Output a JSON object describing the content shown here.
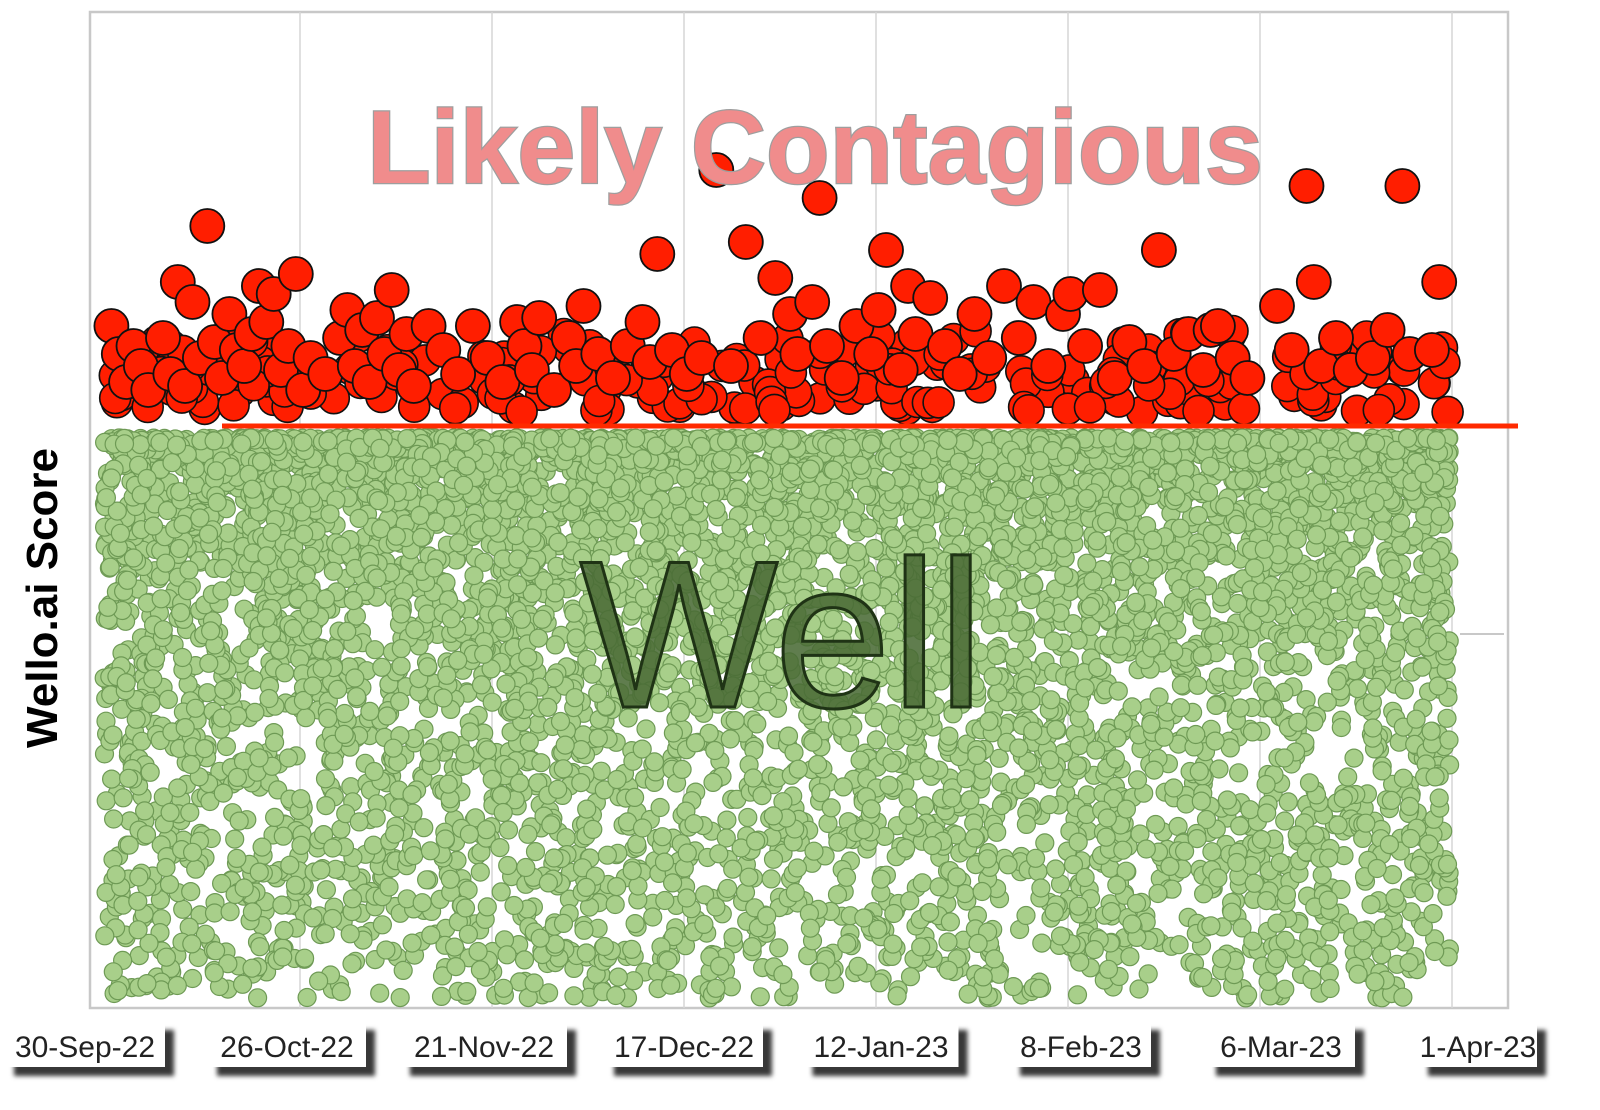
{
  "chart_data": {
    "type": "scatter",
    "ylabel": "Wello.ai Score",
    "x_tick_labels": [
      "30-Sep-22",
      "26-Oct-22",
      "21-Nov-22",
      "17-Dec-22",
      "12-Jan-23",
      "8-Feb-23",
      "6-Mar-23",
      "1-Apr-23"
    ],
    "xlim": [
      "2022-09-30",
      "2023-04-01"
    ],
    "y_ticks_shown": false,
    "grid": "vertical",
    "annotations": [
      "Likely Contagious",
      "Well"
    ],
    "threshold_line": {
      "color": "#ff2a00",
      "description": "separates Likely Contagious (above) from Well (below)"
    },
    "series": [
      {
        "color": "#ff1e00",
        "annotation": "Likely Contagious",
        "points": [
          {
            "x": "2022-10-01",
            "y": 50
          },
          {
            "x": "2022-10-02",
            "y": 36
          },
          {
            "x": "2022-10-03",
            "y": 22
          },
          {
            "x": "2022-10-04",
            "y": 40
          },
          {
            "x": "2022-10-05",
            "y": 30
          },
          {
            "x": "2022-10-06",
            "y": 18
          },
          {
            "x": "2022-10-08",
            "y": 44
          },
          {
            "x": "2022-10-09",
            "y": 26
          },
          {
            "x": "2022-10-10",
            "y": 72
          },
          {
            "x": "2022-10-11",
            "y": 20
          },
          {
            "x": "2022-10-12",
            "y": 62
          },
          {
            "x": "2022-10-13",
            "y": 34
          },
          {
            "x": "2022-10-14",
            "y": 100
          },
          {
            "x": "2022-10-15",
            "y": 42
          },
          {
            "x": "2022-10-16",
            "y": 24
          },
          {
            "x": "2022-10-17",
            "y": 56
          },
          {
            "x": "2022-10-18",
            "y": 38
          },
          {
            "x": "2022-10-19",
            "y": 30
          },
          {
            "x": "2022-10-20",
            "y": 46
          },
          {
            "x": "2022-10-21",
            "y": 70
          },
          {
            "x": "2022-10-22",
            "y": 52
          },
          {
            "x": "2022-10-23",
            "y": 66
          },
          {
            "x": "2022-10-24",
            "y": 28
          },
          {
            "x": "2022-10-25",
            "y": 40
          },
          {
            "x": "2022-10-26",
            "y": 76
          },
          {
            "x": "2022-10-27",
            "y": 18
          },
          {
            "x": "2022-10-28",
            "y": 34
          },
          {
            "x": "2022-10-30",
            "y": 26
          },
          {
            "x": "2022-11-01",
            "y": 44
          },
          {
            "x": "2022-11-02",
            "y": 58
          },
          {
            "x": "2022-11-03",
            "y": 30
          },
          {
            "x": "2022-11-04",
            "y": 48
          },
          {
            "x": "2022-11-05",
            "y": 22
          },
          {
            "x": "2022-11-06",
            "y": 54
          },
          {
            "x": "2022-11-07",
            "y": 36
          },
          {
            "x": "2022-11-08",
            "y": 68
          },
          {
            "x": "2022-11-09",
            "y": 28
          },
          {
            "x": "2022-11-10",
            "y": 46
          },
          {
            "x": "2022-11-11",
            "y": 20
          },
          {
            "x": "2022-11-13",
            "y": 50
          },
          {
            "x": "2022-11-15",
            "y": 38
          },
          {
            "x": "2022-11-17",
            "y": 26
          },
          {
            "x": "2022-11-19",
            "y": 50
          },
          {
            "x": "2022-11-21",
            "y": 34
          },
          {
            "x": "2022-11-23",
            "y": 22
          },
          {
            "x": "2022-11-25",
            "y": 52
          },
          {
            "x": "2022-11-26",
            "y": 40
          },
          {
            "x": "2022-11-27",
            "y": 28
          },
          {
            "x": "2022-11-28",
            "y": 54
          },
          {
            "x": "2022-11-30",
            "y": 18
          },
          {
            "x": "2022-12-02",
            "y": 44
          },
          {
            "x": "2022-12-03",
            "y": 30
          },
          {
            "x": "2022-12-04",
            "y": 60
          },
          {
            "x": "2022-12-06",
            "y": 36
          },
          {
            "x": "2022-12-08",
            "y": 24
          },
          {
            "x": "2022-12-10",
            "y": 40
          },
          {
            "x": "2022-12-12",
            "y": 52
          },
          {
            "x": "2022-12-13",
            "y": 32
          },
          {
            "x": "2022-12-14",
            "y": 86
          },
          {
            "x": "2022-12-16",
            "y": 38
          },
          {
            "x": "2022-12-18",
            "y": 26
          },
          {
            "x": "2022-12-20",
            "y": 34
          },
          {
            "x": "2022-12-22",
            "y": 128
          },
          {
            "x": "2022-12-24",
            "y": 30
          },
          {
            "x": "2022-12-26",
            "y": 92
          },
          {
            "x": "2022-12-28",
            "y": 44
          },
          {
            "x": "2022-12-30",
            "y": 74
          },
          {
            "x": "2023-01-01",
            "y": 56
          },
          {
            "x": "2023-01-02",
            "y": 36
          },
          {
            "x": "2023-01-04",
            "y": 62
          },
          {
            "x": "2023-01-05",
            "y": 114
          },
          {
            "x": "2023-01-06",
            "y": 40
          },
          {
            "x": "2023-01-08",
            "y": 24
          },
          {
            "x": "2023-01-10",
            "y": 50
          },
          {
            "x": "2023-01-12",
            "y": 36
          },
          {
            "x": "2023-01-13",
            "y": 58
          },
          {
            "x": "2023-01-14",
            "y": 88
          },
          {
            "x": "2023-01-16",
            "y": 28
          },
          {
            "x": "2023-01-17",
            "y": 70
          },
          {
            "x": "2023-01-18",
            "y": 46
          },
          {
            "x": "2023-01-20",
            "y": 64
          },
          {
            "x": "2023-01-22",
            "y": 40
          },
          {
            "x": "2023-01-24",
            "y": 26
          },
          {
            "x": "2023-01-26",
            "y": 56
          },
          {
            "x": "2023-01-28",
            "y": 34
          },
          {
            "x": "2023-01-30",
            "y": 70
          },
          {
            "x": "2023-02-01",
            "y": 44
          },
          {
            "x": "2023-02-03",
            "y": 62
          },
          {
            "x": "2023-02-05",
            "y": 30
          },
          {
            "x": "2023-02-07",
            "y": 56
          },
          {
            "x": "2023-02-08",
            "y": 66
          },
          {
            "x": "2023-02-10",
            "y": 40
          },
          {
            "x": "2023-02-12",
            "y": 68
          },
          {
            "x": "2023-02-14",
            "y": 24
          },
          {
            "x": "2023-02-16",
            "y": 42
          },
          {
            "x": "2023-02-18",
            "y": 30
          },
          {
            "x": "2023-02-20",
            "y": 88
          },
          {
            "x": "2023-02-22",
            "y": 36
          },
          {
            "x": "2023-02-24",
            "y": 46
          },
          {
            "x": "2023-02-26",
            "y": 28
          },
          {
            "x": "2023-02-27",
            "y": 48
          },
          {
            "x": "2023-02-28",
            "y": 50
          },
          {
            "x": "2023-03-02",
            "y": 34
          },
          {
            "x": "2023-03-04",
            "y": 24
          },
          {
            "x": "2023-03-08",
            "y": 60
          },
          {
            "x": "2023-03-10",
            "y": 38
          },
          {
            "x": "2023-03-12",
            "y": 120
          },
          {
            "x": "2023-03-13",
            "y": 72
          },
          {
            "x": "2023-03-14",
            "y": 30
          },
          {
            "x": "2023-03-16",
            "y": 44
          },
          {
            "x": "2023-03-18",
            "y": 28
          },
          {
            "x": "2023-03-21",
            "y": 34
          },
          {
            "x": "2023-03-23",
            "y": 48
          },
          {
            "x": "2023-03-25",
            "y": 120
          },
          {
            "x": "2023-03-26",
            "y": 36
          },
          {
            "x": "2023-03-29",
            "y": 38
          },
          {
            "x": "2023-03-30",
            "y": 72
          }
        ]
      },
      {
        "color": "#a8cf8a",
        "annotation": "Well",
        "points": [
          {
            "x": "2022-10-01",
            "y": -20
          },
          {
            "x": "2022-10-04",
            "y": -60
          },
          {
            "x": "2022-10-07",
            "y": -110
          },
          {
            "x": "2022-10-10",
            "y": -175
          },
          {
            "x": "2022-10-13",
            "y": -40
          },
          {
            "x": "2022-10-16",
            "y": -140
          },
          {
            "x": "2022-10-19",
            "y": -225
          },
          {
            "x": "2022-10-22",
            "y": -90
          },
          {
            "x": "2022-10-25",
            "y": -160
          },
          {
            "x": "2022-10-28",
            "y": -30
          },
          {
            "x": "2022-10-31",
            "y": -205
          },
          {
            "x": "2022-11-03",
            "y": -120
          },
          {
            "x": "2022-11-06",
            "y": -70
          },
          {
            "x": "2022-11-09",
            "y": -185
          },
          {
            "x": "2022-11-12",
            "y": -15
          },
          {
            "x": "2022-11-15",
            "y": -130
          },
          {
            "x": "2022-11-18",
            "y": -235
          },
          {
            "x": "2022-11-21",
            "y": -80
          },
          {
            "x": "2022-11-24",
            "y": -165
          },
          {
            "x": "2022-11-27",
            "y": -50
          },
          {
            "x": "2022-11-30",
            "y": -210
          },
          {
            "x": "2022-12-03",
            "y": -100
          },
          {
            "x": "2022-12-06",
            "y": -150
          },
          {
            "x": "2022-12-09",
            "y": -25
          },
          {
            "x": "2022-12-12",
            "y": -195
          },
          {
            "x": "2022-12-15",
            "y": -75
          },
          {
            "x": "2022-12-18",
            "y": -230
          },
          {
            "x": "2022-12-21",
            "y": -120
          },
          {
            "x": "2022-12-24",
            "y": -45
          },
          {
            "x": "2022-12-27",
            "y": -170
          },
          {
            "x": "2022-12-30",
            "y": -95
          },
          {
            "x": "2023-01-02",
            "y": -215
          },
          {
            "x": "2023-01-05",
            "y": -35
          },
          {
            "x": "2023-01-08",
            "y": -145
          },
          {
            "x": "2023-01-11",
            "y": -240
          },
          {
            "x": "2023-01-14",
            "y": -65
          },
          {
            "x": "2023-01-17",
            "y": -180
          },
          {
            "x": "2023-01-20",
            "y": -110
          },
          {
            "x": "2023-01-23",
            "y": -20
          },
          {
            "x": "2023-01-26",
            "y": -200
          },
          {
            "x": "2023-01-29",
            "y": -85
          },
          {
            "x": "2023-02-01",
            "y": -155
          },
          {
            "x": "2023-02-04",
            "y": -225
          },
          {
            "x": "2023-02-07",
            "y": -55
          },
          {
            "x": "2023-02-10",
            "y": -125
          },
          {
            "x": "2023-02-13",
            "y": -190
          },
          {
            "x": "2023-02-16",
            "y": -30
          },
          {
            "x": "2023-02-19",
            "y": -105
          },
          {
            "x": "2023-02-22",
            "y": -175
          },
          {
            "x": "2023-02-25",
            "y": -70
          },
          {
            "x": "2023-02-28",
            "y": -220
          },
          {
            "x": "2023-03-03",
            "y": -135
          },
          {
            "x": "2023-03-06",
            "y": -40
          },
          {
            "x": "2023-03-09",
            "y": -160
          },
          {
            "x": "2023-03-12",
            "y": -90
          },
          {
            "x": "2023-03-15",
            "y": -210
          },
          {
            "x": "2023-03-18",
            "y": -60
          },
          {
            "x": "2023-03-21",
            "y": -145
          },
          {
            "x": "2023-03-24",
            "y": -230
          },
          {
            "x": "2023-03-27",
            "y": -100
          },
          {
            "x": "2023-03-30",
            "y": -180
          }
        ]
      }
    ]
  }
}
